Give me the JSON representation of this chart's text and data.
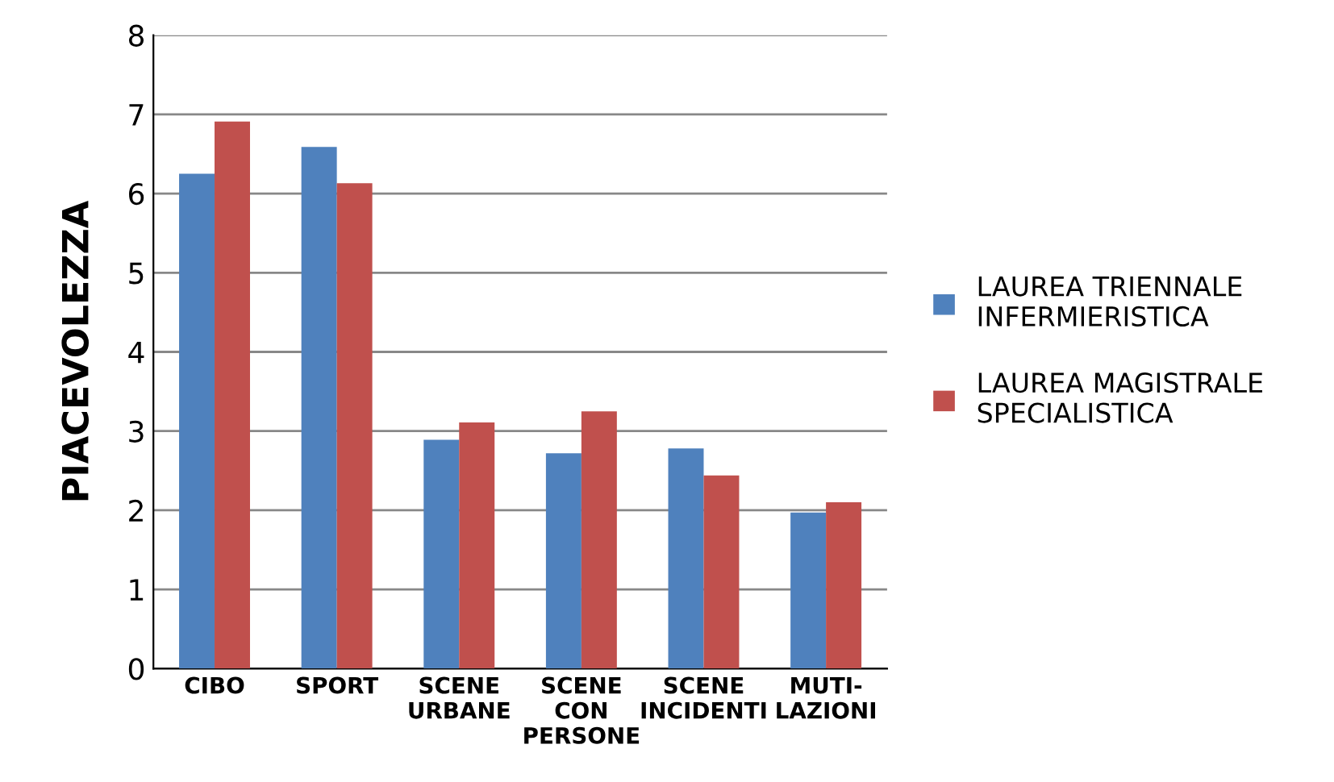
{
  "chart_data": {
    "type": "bar",
    "ylabel": "PIACEVOLEZZA",
    "categories": [
      "CIBO",
      "SPORT",
      "SCENE\nURBANE",
      "SCENE\nCON\nPERSONE",
      "SCENE\nINCIDENTI",
      "MUTI-\nLAZIONI"
    ],
    "series": [
      {
        "name": "LAUREA TRIENNALE\nINFERMIERISTICA",
        "color": "#4f81bd",
        "values": [
          6.25,
          6.59,
          2.89,
          2.72,
          2.78,
          1.97
        ]
      },
      {
        "name": "LAUREA MAGISTRALE\nSPECIALISTICA",
        "color": "#c0504d",
        "values": [
          6.91,
          6.13,
          3.11,
          3.25,
          2.44,
          2.1
        ]
      }
    ],
    "ylim": [
      0,
      8
    ],
    "yticks": [
      0,
      1,
      2,
      3,
      4,
      5,
      6,
      7,
      8
    ],
    "grid": "y",
    "legend": "right"
  }
}
